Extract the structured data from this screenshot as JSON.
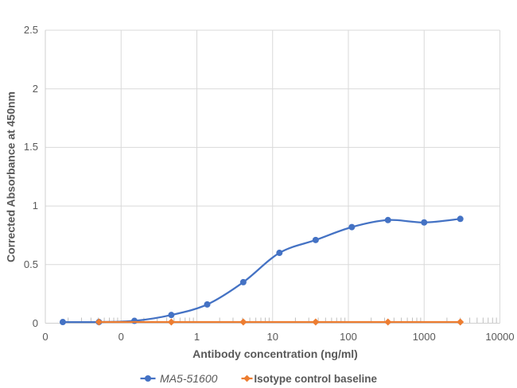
{
  "chart_data": {
    "type": "line",
    "title": "",
    "xlabel": "Antibody concentration (ng/ml)",
    "ylabel": "Corrected Absorbance at 450nm",
    "x_scale": "log",
    "xlim": [
      0.01,
      10000
    ],
    "ylim": [
      0,
      2.5
    ],
    "x_ticks": [
      0.01,
      0.1,
      1,
      10,
      100,
      1000,
      10000
    ],
    "x_tick_labels": [
      "0",
      "0",
      "1",
      "10",
      "100",
      "1000",
      "10000"
    ],
    "y_ticks": [
      0,
      0.5,
      1,
      1.5,
      2,
      2.5
    ],
    "y_tick_labels": [
      "0",
      "0.5",
      "1",
      "1.5",
      "2",
      "2.5"
    ],
    "grid": true,
    "minor_log_ticks": true,
    "legend_position": "bottom",
    "series": [
      {
        "name": "MA5-51600",
        "color": "#4472C4",
        "marker": "circle",
        "smooth": true,
        "x": [
          0.017,
          0.051,
          0.15,
          0.46,
          1.37,
          4.1,
          12.3,
          37,
          111,
          333,
          1000,
          3000
        ],
        "y": [
          0.01,
          0.01,
          0.02,
          0.07,
          0.16,
          0.35,
          0.6,
          0.71,
          0.82,
          0.88,
          0.86,
          0.89
        ]
      },
      {
        "name": "Isotype control baseline",
        "color": "#ED7D31",
        "marker": "diamond",
        "smooth": false,
        "x": [
          0.051,
          0.46,
          4.1,
          37,
          333,
          3000
        ],
        "y": [
          0.01,
          0.01,
          0.01,
          0.01,
          0.01,
          0.01
        ]
      }
    ]
  },
  "colors": {
    "grid": "#D9D9D9",
    "axis": "#CFCFCF",
    "minor_tick": "#BFBFBF",
    "text": "#595959",
    "background": "#FFFFFF"
  }
}
